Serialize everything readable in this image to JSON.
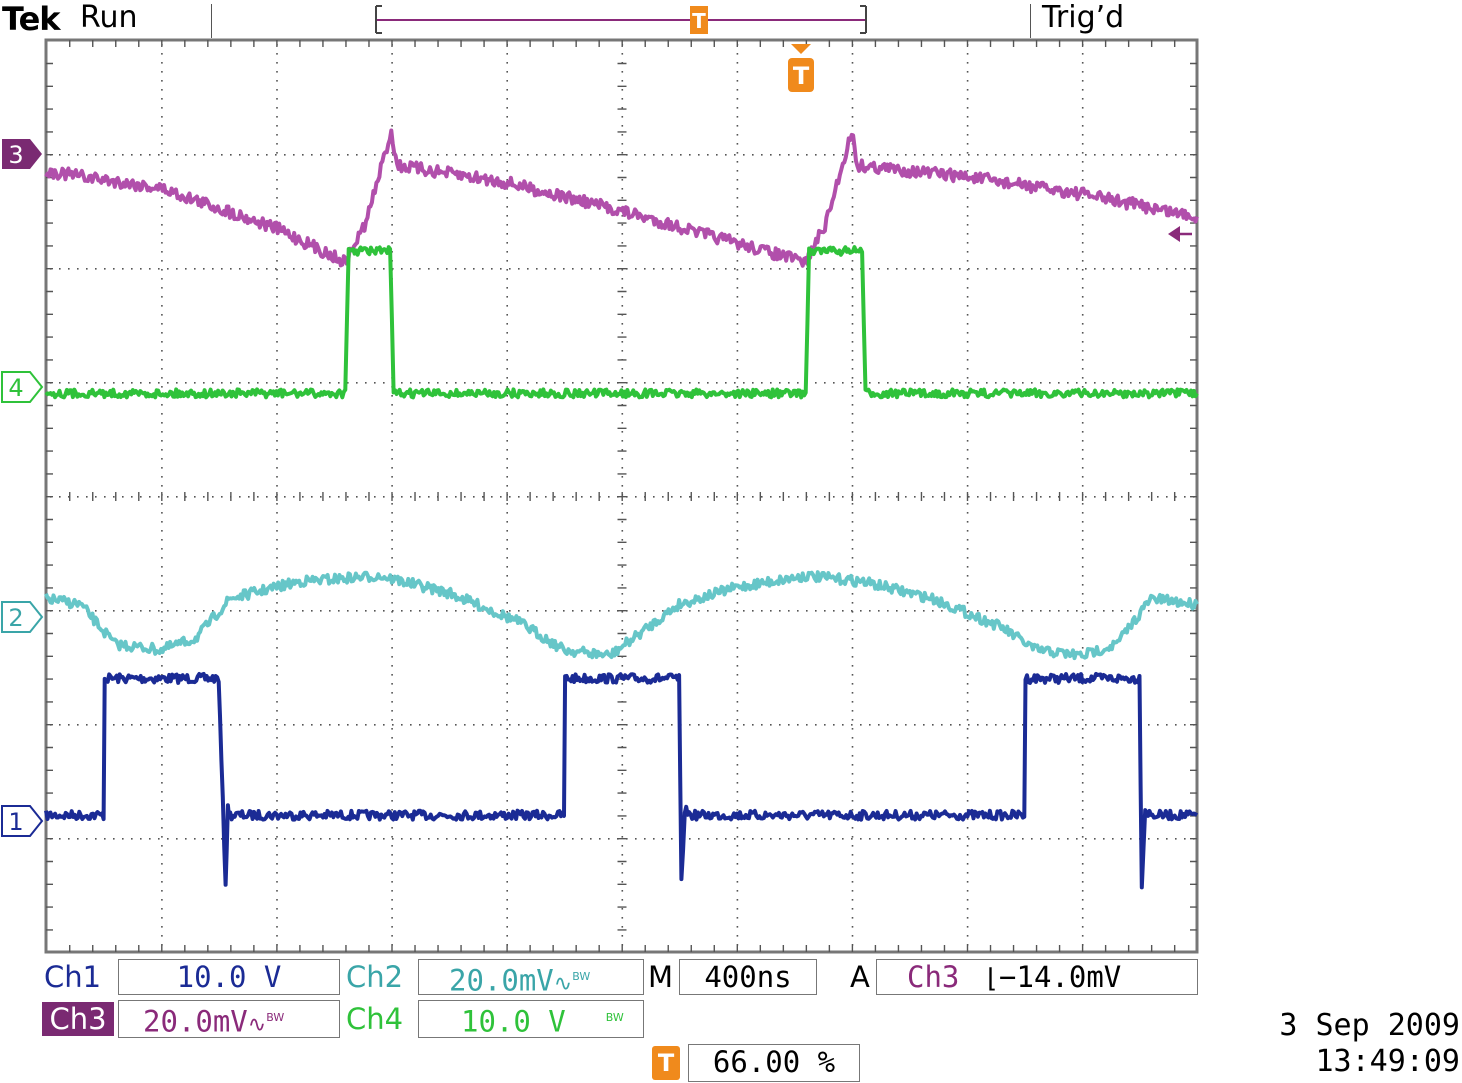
{
  "header": {
    "brand": "Tek",
    "run_state": "Run",
    "trigger_status": "Trig’d",
    "trigger_marker": "T"
  },
  "channel_markers": {
    "ch1": "1",
    "ch2": "2",
    "ch3": "3",
    "ch4": "4"
  },
  "colors": {
    "ch1": "#1b2b95",
    "ch2": "#66c6c8",
    "ch3": "#b14fab",
    "ch4": "#2fc23a",
    "trigger": "#f08a1c",
    "grid": "#555555",
    "border": "#777777"
  },
  "readouts": {
    "ch1_label": "Ch1",
    "ch1_scale": "10.0 V",
    "ch2_label": "Ch2",
    "ch2_scale": "20.0mV",
    "ch3_label": "Ch3",
    "ch3_scale": "20.0mV",
    "ch4_label": "Ch4",
    "ch4_scale": "10.0 V",
    "ac_symbol": "∿",
    "bw_symbol": "BW",
    "timebase_label": "M",
    "timebase": "400ns",
    "trigger_mode": "A",
    "trigger_source": "Ch3",
    "trigger_slope": "⌊",
    "trigger_level": "−14.0mV",
    "trigger_position_marker": "T",
    "trigger_position": "66.00 %"
  },
  "timestamp": {
    "date": "3 Sep  2009",
    "time": "13:49:09"
  },
  "chart_data": {
    "type": "line",
    "title": "",
    "grid": true,
    "grid_divisions": {
      "x": 10,
      "y": 8
    },
    "x_unit": "divisions (400ns/div)",
    "y_unit": "divisions",
    "xlim": [
      0,
      10
    ],
    "ylim": [
      -4,
      4
    ],
    "series": [
      {
        "name": "Ch1",
        "scale": "10.0 V/div",
        "x": [
          0,
          0.5,
          0.51,
          1.5,
          1.56,
          1.58,
          1.6,
          4.5,
          4.51,
          5.5,
          5.52,
          5.55,
          5.6,
          8.5,
          8.51,
          9.5,
          9.52,
          9.55,
          9.6,
          10
        ],
        "y": [
          -2.8,
          -2.8,
          -1.6,
          -1.6,
          -3.4,
          -2.75,
          -2.8,
          -2.8,
          -1.6,
          -1.6,
          -3.4,
          -2.75,
          -2.8,
          -2.8,
          -1.6,
          -1.6,
          -3.4,
          -2.75,
          -2.8,
          -2.8
        ]
      },
      {
        "name": "Ch2",
        "scale": "20.0mV/div",
        "x": [
          0,
          0.3,
          0.6,
          1.0,
          1.3,
          1.6,
          2.2,
          2.9,
          3.5,
          4.1,
          4.5,
          4.9,
          5.5,
          6.0,
          6.6,
          7.1,
          7.7,
          8.3,
          8.6,
          9.0,
          9.3,
          9.6,
          10
        ],
        "y": [
          -0.9,
          -0.95,
          -1.3,
          -1.35,
          -1.25,
          -0.9,
          -0.75,
          -0.7,
          -0.85,
          -1.1,
          -1.35,
          -1.4,
          -0.95,
          -0.8,
          -0.7,
          -0.75,
          -0.9,
          -1.15,
          -1.35,
          -1.4,
          -1.3,
          -0.9,
          -0.95
        ]
      },
      {
        "name": "Ch3",
        "scale": "20.0mV/div",
        "x": [
          0,
          1.0,
          2.0,
          2.6,
          2.78,
          3.0,
          3.05,
          4.0,
          5.0,
          6.6,
          6.78,
          7.0,
          7.05,
          8.0,
          9.0,
          10
        ],
        "y": [
          2.85,
          2.7,
          2.35,
          2.05,
          2.4,
          3.2,
          2.9,
          2.75,
          2.5,
          2.05,
          2.4,
          3.2,
          2.9,
          2.8,
          2.65,
          2.45
        ]
      },
      {
        "name": "Ch4",
        "scale": "10.0 V/div",
        "x": [
          0,
          2.58,
          2.62,
          3.0,
          3.05,
          10
        ],
        "y": [
          0.9,
          0.9,
          2.15,
          2.15,
          0.9,
          0.9
        ],
        "pulses": [
          [
            2.6,
            3.02
          ],
          [
            6.6,
            7.12
          ]
        ]
      }
    ],
    "reference_levels": {
      "ch1": -2.8,
      "ch2": -0.9,
      "ch3": 2.85,
      "ch4": 0.9
    },
    "trigger_level_marker": {
      "channel": "Ch3",
      "y": 2.15
    },
    "trigger_time": 6.58
  }
}
